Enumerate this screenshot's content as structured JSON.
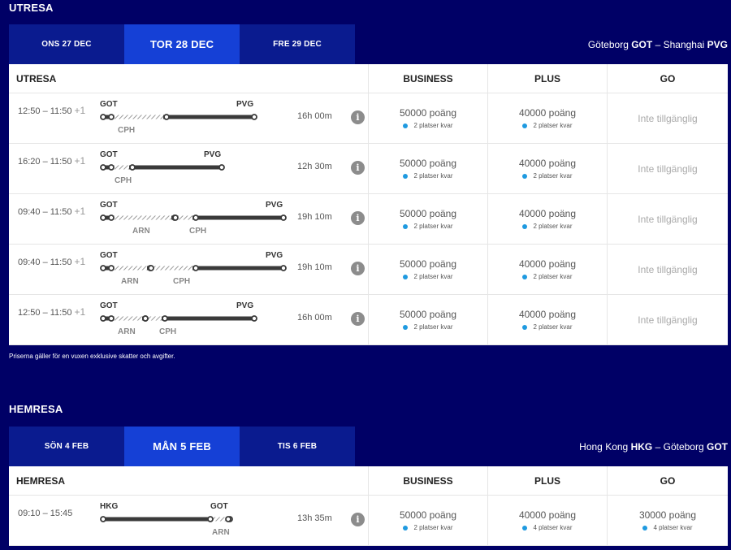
{
  "outbound": {
    "title": "UTRESA",
    "dates": [
      {
        "label": "ONS 27 DEC",
        "active": false
      },
      {
        "label": "TOR 28 DEC",
        "active": true
      },
      {
        "label": "FRE 29 DEC",
        "active": false
      }
    ],
    "route": {
      "from_city": "Göteborg",
      "from_code": "GOT",
      "sep": "–",
      "to_city": "Shanghai",
      "to_code": "PVG"
    },
    "header": {
      "label": "UTRESA",
      "classes": [
        "BUSINESS",
        "PLUS",
        "GO"
      ]
    },
    "flights": [
      {
        "time": "12:50 – 11:50",
        "plus": "+1",
        "from": "GOT",
        "to": "PVG",
        "stops": [
          "CPH"
        ],
        "duration": "16h 00m",
        "fares": [
          {
            "points": "50000 poäng",
            "seats": "2 platser kvar"
          },
          {
            "points": "40000 poäng",
            "seats": "2 platser kvar"
          },
          {
            "na": "Inte tillgänglig"
          }
        ]
      },
      {
        "time": "16:20 – 11:50",
        "plus": "+1",
        "from": "GOT",
        "to": "PVG",
        "stops": [
          "CPH"
        ],
        "duration": "12h 30m",
        "fares": [
          {
            "points": "50000 poäng",
            "seats": "2 platser kvar"
          },
          {
            "points": "40000 poäng",
            "seats": "2 platser kvar"
          },
          {
            "na": "Inte tillgänglig"
          }
        ]
      },
      {
        "time": "09:40 – 11:50",
        "plus": "+1",
        "from": "GOT",
        "to": "PVG",
        "stops": [
          "ARN",
          "CPH"
        ],
        "duration": "19h 10m",
        "fares": [
          {
            "points": "50000 poäng",
            "seats": "2 platser kvar"
          },
          {
            "points": "40000 poäng",
            "seats": "2 platser kvar"
          },
          {
            "na": "Inte tillgänglig"
          }
        ]
      },
      {
        "time": "09:40 – 11:50",
        "plus": "+1",
        "from": "GOT",
        "to": "PVG",
        "stops": [
          "ARN",
          "CPH"
        ],
        "duration": "19h 10m",
        "fares": [
          {
            "points": "50000 poäng",
            "seats": "2 platser kvar"
          },
          {
            "points": "40000 poäng",
            "seats": "2 platser kvar"
          },
          {
            "na": "Inte tillgänglig"
          }
        ]
      },
      {
        "time": "12:50 – 11:50",
        "plus": "+1",
        "from": "GOT",
        "to": "PVG",
        "stops": [
          "ARN",
          "CPH"
        ],
        "duration": "16h 00m",
        "fares": [
          {
            "points": "50000 poäng",
            "seats": "2 platser kvar"
          },
          {
            "points": "40000 poäng",
            "seats": "2 platser kvar"
          },
          {
            "na": "Inte tillgänglig"
          }
        ]
      }
    ],
    "note": "Priserna gäller för en vuxen exklusive skatter och avgifter."
  },
  "inbound": {
    "title": "HEMRESA",
    "dates": [
      {
        "label": "SÖN 4 FEB",
        "active": false
      },
      {
        "label": "MÅN 5 FEB",
        "active": true
      },
      {
        "label": "TIS 6 FEB",
        "active": false
      }
    ],
    "route": {
      "from_city": "Hong Kong",
      "from_code": "HKG",
      "sep": "–",
      "to_city": "Göteborg",
      "to_code": "GOT"
    },
    "header": {
      "label": "HEMRESA",
      "classes": [
        "BUSINESS",
        "PLUS",
        "GO"
      ]
    },
    "flights": [
      {
        "time": "09:10 – 15:45",
        "plus": "",
        "from": "HKG",
        "to": "GOT",
        "stops": [
          "ARN"
        ],
        "duration": "13h 35m",
        "fares": [
          {
            "points": "50000 poäng",
            "seats": "2 platser kvar"
          },
          {
            "points": "40000 poäng",
            "seats": "4 platser kvar"
          },
          {
            "points": "30000 poäng",
            "seats": "4 platser kvar"
          }
        ]
      }
    ]
  },
  "info_icon_glyph": "i",
  "colors": {
    "background": "#000066",
    "tab": "#0A1B8F",
    "tab_active": "#1540D6",
    "seat_dot": "#1f9ae0"
  }
}
